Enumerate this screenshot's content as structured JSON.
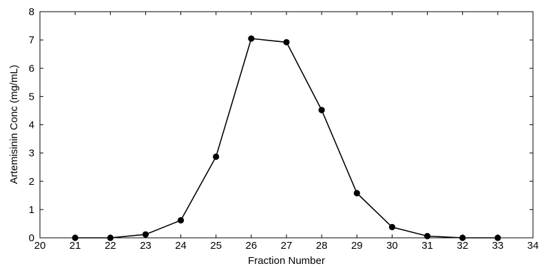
{
  "chart_data": {
    "type": "line",
    "title": "",
    "xlabel": "Fraction Number",
    "ylabel": "Artemisinin Conc (mg/mL)",
    "xlim": [
      20,
      34
    ],
    "ylim": [
      0,
      8
    ],
    "x_ticks": [
      20,
      21,
      22,
      23,
      24,
      25,
      26,
      27,
      28,
      29,
      30,
      31,
      32,
      33,
      34
    ],
    "y_ticks": [
      0,
      1,
      2,
      3,
      4,
      5,
      6,
      7,
      8
    ],
    "grid": false,
    "legend": "none",
    "line_color": "#000000",
    "marker": "filled-circle",
    "series": [
      {
        "x": [
          21,
          22,
          23,
          24,
          25,
          26,
          27,
          28,
          29,
          30,
          31,
          32,
          33
        ],
        "y": [
          0.0,
          0.0,
          0.12,
          0.62,
          2.87,
          7.05,
          6.92,
          4.52,
          1.58,
          0.38,
          0.06,
          0.0,
          0.0
        ]
      }
    ]
  }
}
